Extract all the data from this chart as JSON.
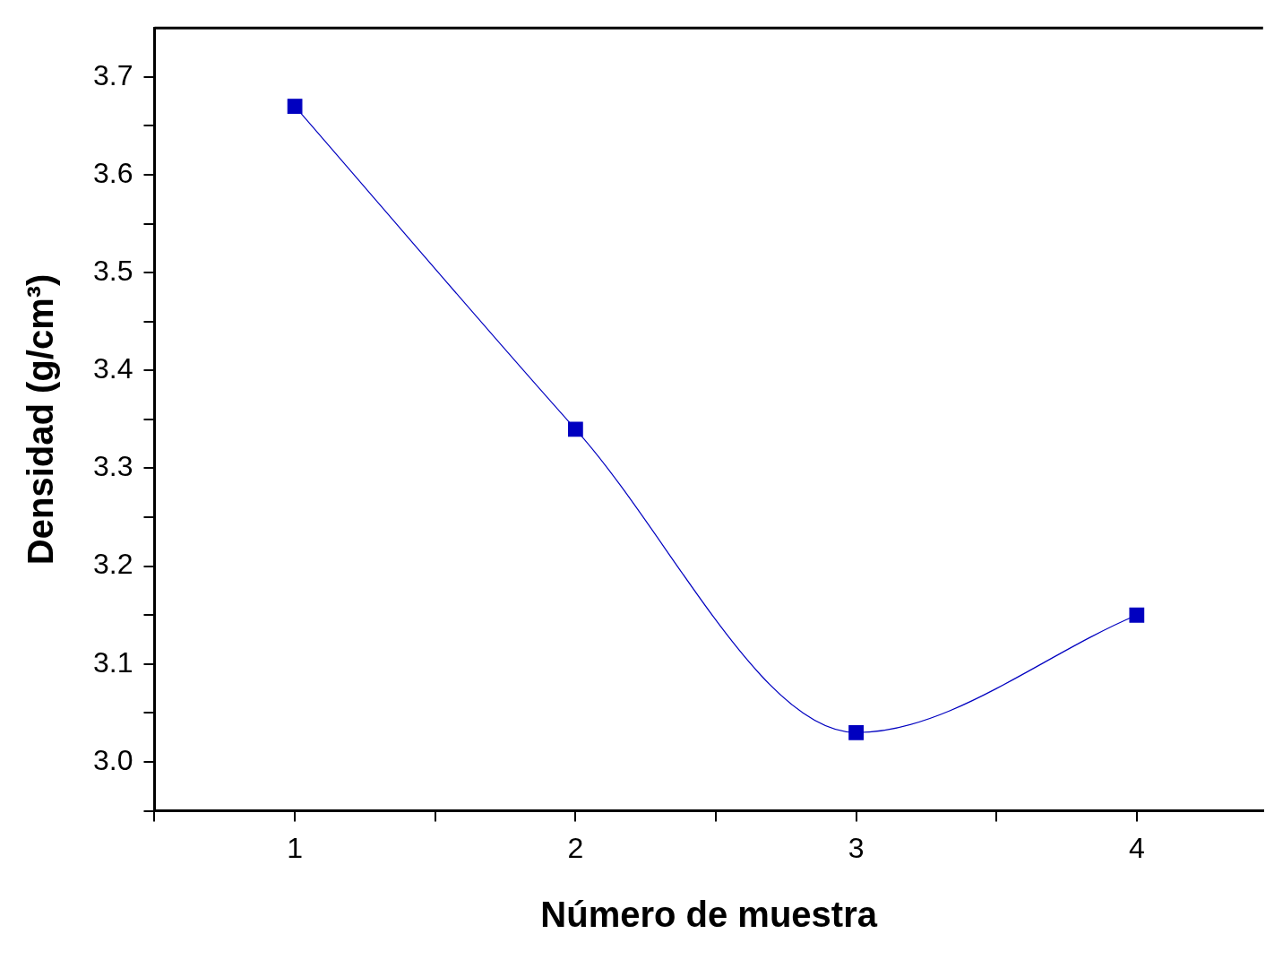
{
  "chart_data": {
    "type": "line",
    "xlabel": "Número de muestra",
    "ylabel": "Densidad (g/cm³)",
    "x": [
      1,
      2,
      3,
      4
    ],
    "series": [
      {
        "color": "#0000c0",
        "values": [
          3.67,
          3.34,
          3.03,
          3.15
        ]
      }
    ],
    "xlim": [
      0.5,
      4.45
    ],
    "xticks": [
      {
        "value": 0.5,
        "label": null
      },
      1,
      {
        "value": 1.5,
        "label": null
      },
      2,
      {
        "value": 2.5,
        "label": null
      },
      3,
      {
        "value": 3.5,
        "label": null
      },
      4
    ],
    "ylim": [
      2.95,
      3.75
    ],
    "yticks": [
      {
        "value": 2.95,
        "label": null
      },
      {
        "value": 3.0,
        "label": "3.0"
      },
      {
        "value": 3.05,
        "label": null
      },
      3.1,
      {
        "value": 3.15,
        "label": null
      },
      3.2,
      {
        "value": 3.25,
        "label": null
      },
      3.3,
      {
        "value": 3.35,
        "label": null
      },
      3.4,
      {
        "value": 3.45,
        "label": null
      },
      3.5,
      {
        "value": 3.55,
        "label": null
      },
      3.6,
      {
        "value": 3.65,
        "label": null
      },
      3.7
    ],
    "marker": "square",
    "grid": false,
    "legend": false
  }
}
